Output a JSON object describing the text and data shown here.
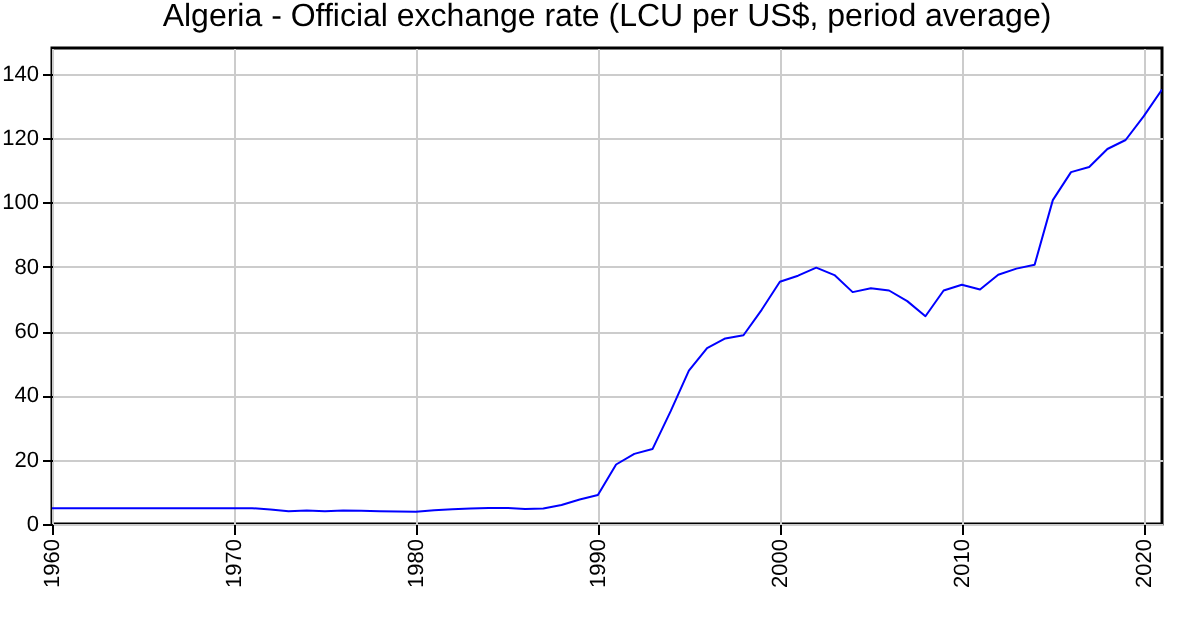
{
  "chart_data": {
    "type": "line",
    "title": "Algeria - Official exchange rate (LCU per US$, period average)",
    "x": [
      1960,
      1961,
      1962,
      1963,
      1964,
      1965,
      1966,
      1967,
      1968,
      1969,
      1970,
      1971,
      1972,
      1973,
      1974,
      1975,
      1976,
      1977,
      1978,
      1979,
      1980,
      1981,
      1982,
      1983,
      1984,
      1985,
      1986,
      1987,
      1988,
      1989,
      1990,
      1991,
      1992,
      1993,
      1994,
      1995,
      1996,
      1997,
      1998,
      1999,
      2000,
      2001,
      2002,
      2003,
      2004,
      2005,
      2006,
      2007,
      2008,
      2009,
      2010,
      2011,
      2012,
      2013,
      2014,
      2015,
      2016,
      2017,
      2018,
      2019,
      2020,
      2021
    ],
    "series": [
      {
        "color": "#0000ff",
        "values": [
          4.9,
          4.9,
          4.9,
          4.9,
          4.9,
          4.9,
          4.9,
          4.9,
          4.9,
          4.9,
          4.9,
          4.9,
          4.5,
          4.0,
          4.2,
          4.0,
          4.2,
          4.1,
          4.0,
          3.9,
          3.8,
          4.3,
          4.6,
          4.8,
          5.0,
          5.0,
          4.7,
          4.8,
          5.9,
          7.6,
          9.0,
          18.5,
          21.8,
          23.3,
          35.1,
          47.7,
          54.7,
          57.7,
          58.7,
          66.6,
          75.3,
          77.2,
          79.7,
          77.4,
          72.1,
          73.3,
          72.6,
          69.3,
          64.6,
          72.6,
          74.4,
          72.9,
          77.5,
          79.4,
          80.6,
          100.7,
          109.4,
          111.0,
          116.6,
          119.4,
          126.8,
          135.1
        ]
      }
    ],
    "xlim": [
      1960,
      2021
    ],
    "xticks": [
      1960,
      1970,
      1980,
      1990,
      2000,
      2010,
      2020
    ],
    "ylim": [
      0,
      148
    ],
    "yticks": [
      0,
      20,
      40,
      60,
      80,
      100,
      120,
      140
    ],
    "grid": true,
    "legend": false,
    "line_style": "solid",
    "marker": "none"
  }
}
